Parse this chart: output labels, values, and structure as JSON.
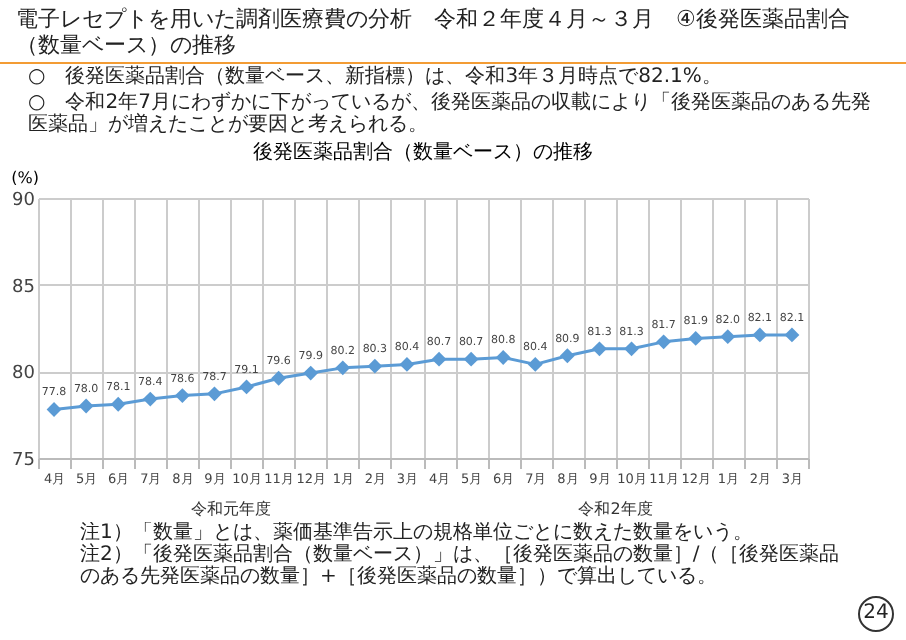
{
  "chart_data": {
    "type": "line",
    "title": "電子レセプトを用いた調剤医療費の分析　令和２年度４月～３月　④後発医薬品割合（数量ベース）の推移",
    "subtitle": "後発医薬品割合（数量ベース）の推移",
    "ylabel": "(%)",
    "categories": [
      "4月",
      "5月",
      "6月",
      "7月",
      "8月",
      "9月",
      "10月",
      "11月",
      "12月",
      "1月",
      "2月",
      "3月",
      "4月",
      "5月",
      "6月",
      "7月",
      "8月",
      "9月",
      "10月",
      "11月",
      "12月",
      "1月",
      "2月",
      "3月"
    ],
    "series": [
      {
        "color": "#5b9bd5",
        "values": [
          77.8,
          78.0,
          78.1,
          78.4,
          78.6,
          78.7,
          79.1,
          79.6,
          79.9,
          80.2,
          80.3,
          80.4,
          80.7,
          80.7,
          80.8,
          80.4,
          80.9,
          81.3,
          81.3,
          81.7,
          81.9,
          82.0,
          82.1,
          82.1
        ]
      }
    ],
    "value_labels": [
      "77.8",
      "78.0",
      "78.1",
      "78.4",
      "78.6",
      "78.7",
      "79.1",
      "79.6",
      "79.9",
      "80.2",
      "80.3",
      "80.4",
      "80.7",
      "80.7",
      "80.8",
      "80.4",
      "80.9",
      "81.3",
      "81.3",
      "81.7",
      "81.9",
      "82.0",
      "82.1",
      "82.1"
    ],
    "ylim": [
      75,
      90
    ],
    "yticks": [
      75,
      80,
      85,
      90
    ],
    "grid": true,
    "marker": "diamond",
    "line_style": "solid",
    "annotations": [
      "令和元年度",
      "令和2年度",
      "○　後発医薬品割合（数量ベース、新指標）は、令和3年３月時点で82.1%。",
      "○　令和2年7月にわずかに下がっているが、後発医薬品の収載により「後発医薬品のある先発医薬品」が増えたことが要因と考えられる。",
      "注1）「数量」とは、薬価基準告示上の規格単位ごとに数えた数量をいう。",
      "注2）「後発医薬品割合（数量ベース）」は、［後発医薬品の数量］/（［後発医薬品のある先発医薬品の数量］+［後発医薬品の数量］）で算出している。",
      "24"
    ]
  }
}
